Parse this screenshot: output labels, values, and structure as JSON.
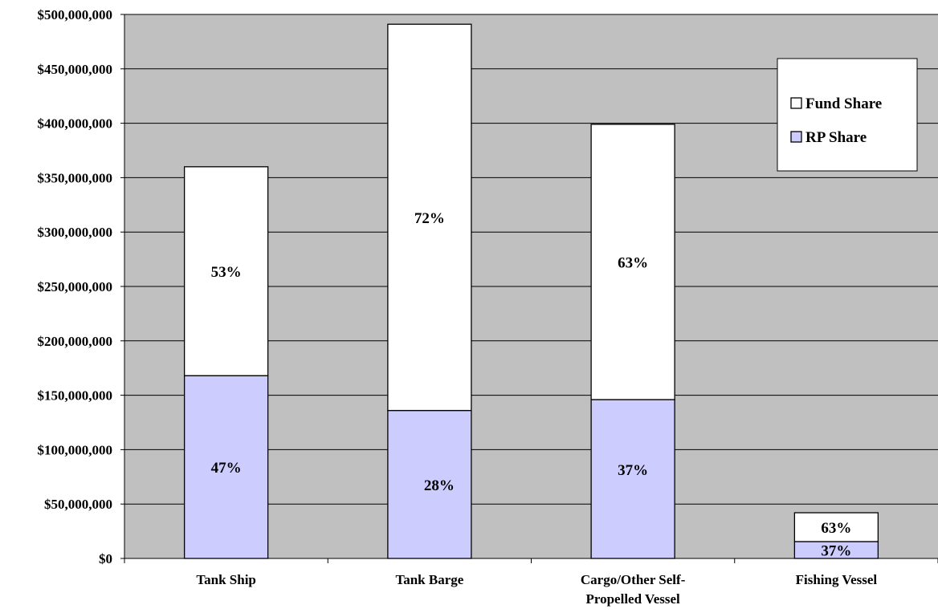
{
  "chart_data": {
    "type": "bar",
    "stacked": true,
    "categories": [
      "Tank Ship",
      "Tank Barge",
      "Cargo/Other Self-Propelled Vessel",
      "Fishing Vessel"
    ],
    "category_labels": [
      [
        "Tank Ship"
      ],
      [
        "Tank Barge"
      ],
      [
        "Cargo/Other Self-",
        "Propelled Vessel"
      ],
      [
        "Fishing Vessel"
      ]
    ],
    "series": [
      {
        "name": "RP Share",
        "values": [
          168000000,
          136000000,
          146000000,
          15500000
        ],
        "labels": [
          "47%",
          "28%",
          "37%",
          "37%"
        ],
        "color": "#ccccff"
      },
      {
        "name": "Fund Share",
        "values": [
          192000000,
          355000000,
          253000000,
          26500000
        ],
        "labels": [
          "53%",
          "72%",
          "63%",
          "63%"
        ],
        "color": "#ffffff"
      }
    ],
    "ylim": [
      0,
      500000000
    ],
    "yticks": [
      0,
      50000000,
      100000000,
      150000000,
      200000000,
      250000000,
      300000000,
      350000000,
      400000000,
      450000000,
      500000000
    ],
    "ytick_labels": [
      "$0",
      "$50,000,000",
      "$100,000,000",
      "$150,000,000",
      "$200,000,000",
      "$250,000,000",
      "$300,000,000",
      "$350,000,000",
      "$400,000,000",
      "$450,000,000",
      "$500,000,000"
    ],
    "grid": true,
    "plot_background": "#c0c0c0",
    "legend": {
      "position": "top-right",
      "entries": [
        "Fund Share",
        "RP Share"
      ]
    },
    "title": "",
    "xlabel": "",
    "ylabel": ""
  }
}
